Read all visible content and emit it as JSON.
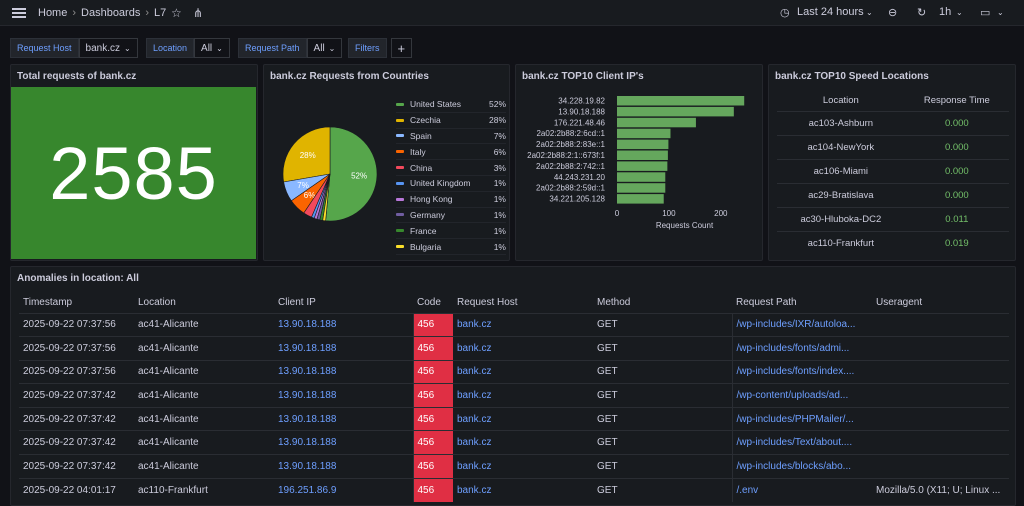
{
  "topbar": {
    "breadcrumbs": [
      "Home",
      "Dashboards",
      "L7"
    ],
    "time_range": "Last 24 hours",
    "refresh_interval": "1h"
  },
  "variables": {
    "request_host": {
      "label": "Request Host",
      "value": "bank.cz"
    },
    "location": {
      "label": "Location",
      "value": "All"
    },
    "request_path": {
      "label": "Request Path",
      "value": "All"
    },
    "filters_label": "Filters",
    "add_label": "+"
  },
  "panels": {
    "total": {
      "title": "Total requests of bank.cz",
      "value": "2585",
      "color": "#37872d"
    },
    "countries": {
      "title": "bank.cz Requests from Countries"
    },
    "client_ips": {
      "title": "bank.cz TOP10 Client IP's"
    },
    "speed": {
      "title": "bank.cz TOP10 Speed Locations",
      "headers": [
        "Location",
        "Response Time"
      ],
      "rows": [
        [
          "ac103-Ashburn",
          "0.000"
        ],
        [
          "ac104-NewYork",
          "0.000"
        ],
        [
          "ac106-Miami",
          "0.000"
        ],
        [
          "ac29-Bratislava",
          "0.000"
        ],
        [
          "ac30-Hluboka-DC2",
          "0.011"
        ],
        [
          "ac110-Frankfurt",
          "0.019"
        ]
      ]
    },
    "anomalies": {
      "title": "Anomalies in location: All",
      "headers": [
        "Timestamp",
        "Location",
        "Client IP",
        "Code",
        "Request Host",
        "Method",
        "Request Path",
        "Useragent"
      ],
      "rows": [
        [
          "2025-09-22 07:37:56",
          "ac41-Alicante",
          "13.90.18.188",
          "456",
          "bank.cz",
          "GET",
          "/wp-includes/IXR/autoloa...",
          ""
        ],
        [
          "2025-09-22 07:37:56",
          "ac41-Alicante",
          "13.90.18.188",
          "456",
          "bank.cz",
          "GET",
          "/wp-includes/fonts/admi...",
          ""
        ],
        [
          "2025-09-22 07:37:56",
          "ac41-Alicante",
          "13.90.18.188",
          "456",
          "bank.cz",
          "GET",
          "/wp-includes/fonts/index....",
          ""
        ],
        [
          "2025-09-22 07:37:42",
          "ac41-Alicante",
          "13.90.18.188",
          "456",
          "bank.cz",
          "GET",
          "/wp-content/uploads/ad...",
          ""
        ],
        [
          "2025-09-22 07:37:42",
          "ac41-Alicante",
          "13.90.18.188",
          "456",
          "bank.cz",
          "GET",
          "/wp-includes/PHPMailer/...",
          ""
        ],
        [
          "2025-09-22 07:37:42",
          "ac41-Alicante",
          "13.90.18.188",
          "456",
          "bank.cz",
          "GET",
          "/wp-includes/Text/about....",
          ""
        ],
        [
          "2025-09-22 07:37:42",
          "ac41-Alicante",
          "13.90.18.188",
          "456",
          "bank.cz",
          "GET",
          "/wp-includes/blocks/abo...",
          ""
        ],
        [
          "2025-09-22 04:01:17",
          "ac110-Frankfurt",
          "196.251.86.9",
          "456",
          "bank.cz",
          "GET",
          "/.env",
          "Mozilla/5.0 (X11; U; Linux ..."
        ]
      ]
    }
  },
  "chart_data": [
    {
      "type": "pie",
      "title": "bank.cz Requests from Countries",
      "slices": [
        {
          "name": "United States",
          "percent": 52,
          "label": "52%",
          "color": "#56a64b"
        },
        {
          "name": "Czechia",
          "percent": 28,
          "label": "28%",
          "color": "#e0b400"
        },
        {
          "name": "Spain",
          "percent": 7,
          "label": "7%",
          "color": "#8ab8ff"
        },
        {
          "name": "Italy",
          "percent": 6,
          "label": "6%",
          "color": "#fa6400"
        },
        {
          "name": "China",
          "percent": 3,
          "label": "3%",
          "color": "#f2495c"
        },
        {
          "name": "United Kingdom",
          "percent": 1,
          "label": "1%",
          "color": "#5794f2"
        },
        {
          "name": "Hong Kong",
          "percent": 1,
          "label": "1%",
          "color": "#b877d9"
        },
        {
          "name": "Germany",
          "percent": 1,
          "label": "1%",
          "color": "#705da0"
        },
        {
          "name": "France",
          "percent": 1,
          "label": "1%",
          "color": "#37872d"
        },
        {
          "name": "Bulgaria",
          "percent": 1,
          "label": "1%",
          "color": "#fade2a"
        }
      ]
    },
    {
      "type": "bar",
      "orientation": "horizontal",
      "title": "bank.cz TOP10 Client IP's",
      "categories": [
        "34.228.19.82",
        "13.90.18.188",
        "176.221.48.46",
        "2a02:2b88:2:6cd::1",
        "2a02:2b88:2:83e::1",
        "2a02:2b88:2:1::673f:1",
        "2a02:2b88:2:742::1",
        "44.243.231.20",
        "2a02:2b88:2:59d::1",
        "34.221.205.128"
      ],
      "values": [
        245,
        225,
        152,
        103,
        99,
        98,
        97,
        93,
        93,
        90
      ],
      "xlabel": "Requests Count",
      "xticks": [
        0,
        100,
        200
      ],
      "xlim": [
        0,
        260
      ],
      "color": "#73bf69"
    }
  ]
}
